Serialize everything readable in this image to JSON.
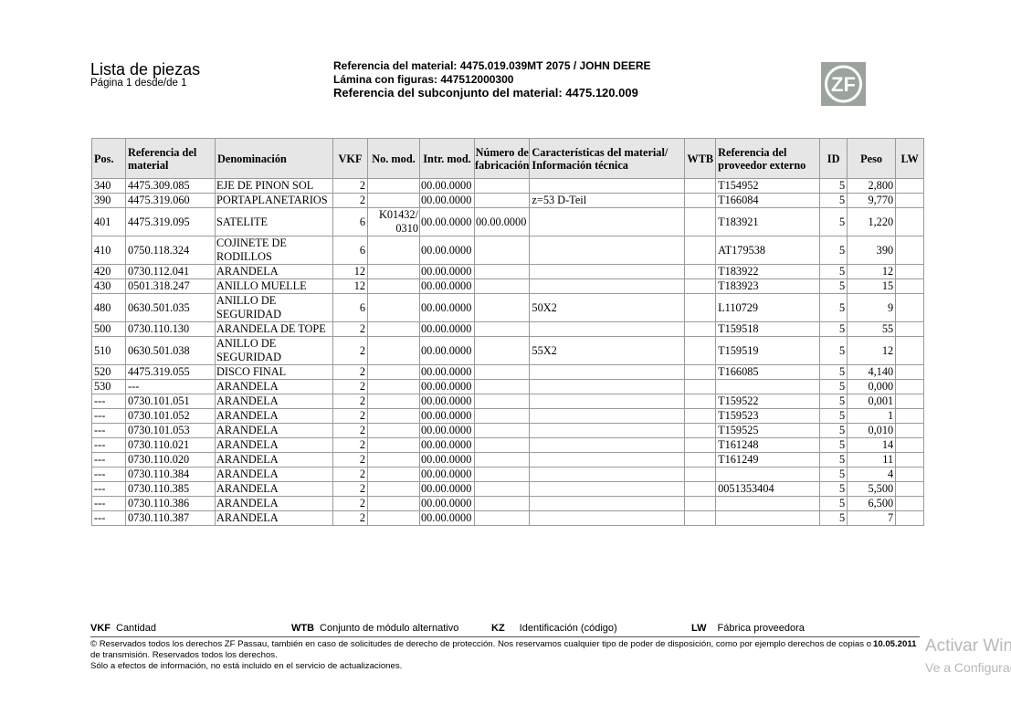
{
  "header": {
    "title": "Lista de piezas",
    "page": "Página 1 desde/de 1",
    "material_ref": "Referencia del material: 4475.019.039MT 2075 / JOHN DEERE",
    "lamina": "Lámina con figuras: 447512000300",
    "subassembly_ref": "Referencia del subconjunto del material: 4475.120.009",
    "logo_text": "ZF"
  },
  "table": {
    "columns": [
      "Pos.",
      "Referencia del material",
      "Denominación",
      "VKF",
      "No. mod.",
      "Intr. mod.",
      "Número de fabricación",
      "Características del material/ Información técnica",
      "WTB",
      "Referencia del proveedor externo",
      "ID",
      "Peso",
      "LW"
    ],
    "rows": [
      [
        "340",
        "4475.309.085",
        "EJE DE PINON SOL",
        "2",
        "",
        "00.00.0000",
        "",
        "",
        "",
        "T154952",
        "5",
        "2,800",
        ""
      ],
      [
        "390",
        "4475.319.060",
        "PORTAPLANETARIOS",
        "2",
        "",
        "00.00.0000",
        "",
        "z=53 D-Teil",
        "",
        "T166084",
        "5",
        "9,770",
        ""
      ],
      [
        "401",
        "4475.319.095",
        "SATELITE",
        "6",
        "K01432/ 0310",
        "00.00.0000",
        "00.00.0000",
        "",
        "",
        "T183921",
        "5",
        "1,220",
        ""
      ],
      [
        "410",
        "0750.118.324",
        "COJINETE DE RODILLOS",
        "6",
        "",
        "00.00.0000",
        "",
        "",
        "",
        "AT179538",
        "5",
        "390",
        ""
      ],
      [
        "420",
        "0730.112.041",
        "ARANDELA",
        "12",
        "",
        "00.00.0000",
        "",
        "",
        "",
        "T183922",
        "5",
        "12",
        ""
      ],
      [
        "430",
        "0501.318.247",
        "ANILLO MUELLE",
        "12",
        "",
        "00.00.0000",
        "",
        "",
        "",
        "T183923",
        "5",
        "15",
        ""
      ],
      [
        "480",
        "0630.501.035",
        "ANILLO DE SEGURIDAD",
        "6",
        "",
        "00.00.0000",
        "",
        "50X2",
        "",
        "L110729",
        "5",
        "9",
        ""
      ],
      [
        "500",
        "0730.110.130",
        "ARANDELA DE TOPE",
        "2",
        "",
        "00.00.0000",
        "",
        "",
        "",
        "T159518",
        "5",
        "55",
        ""
      ],
      [
        "510",
        "0630.501.038",
        "ANILLO DE SEGURIDAD",
        "2",
        "",
        "00.00.0000",
        "",
        "55X2",
        "",
        "T159519",
        "5",
        "12",
        ""
      ],
      [
        "520",
        "4475.319.055",
        "DISCO FINAL",
        "2",
        "",
        "00.00.0000",
        "",
        "",
        "",
        "T166085",
        "5",
        "4,140",
        ""
      ],
      [
        "530",
        "---",
        "ARANDELA",
        "2",
        "",
        "00.00.0000",
        "",
        "",
        "",
        "",
        "5",
        "0,000",
        ""
      ],
      [
        "---",
        "0730.101.051",
        "ARANDELA",
        "2",
        "",
        "00.00.0000",
        "",
        "",
        "",
        "T159522",
        "5",
        "0,001",
        ""
      ],
      [
        "---",
        "0730.101.052",
        "ARANDELA",
        "2",
        "",
        "00.00.0000",
        "",
        "",
        "",
        "T159523",
        "5",
        "1",
        ""
      ],
      [
        "---",
        "0730.101.053",
        "ARANDELA",
        "2",
        "",
        "00.00.0000",
        "",
        "",
        "",
        "T159525",
        "5",
        "0,010",
        ""
      ],
      [
        "---",
        "0730.110.021",
        "ARANDELA",
        "2",
        "",
        "00.00.0000",
        "",
        "",
        "",
        "T161248",
        "5",
        "14",
        ""
      ],
      [
        "---",
        "0730.110.020",
        "ARANDELA",
        "2",
        "",
        "00.00.0000",
        "",
        "",
        "",
        "T161249",
        "5",
        "11",
        ""
      ],
      [
        "---",
        "0730.110.384",
        "ARANDELA",
        "2",
        "",
        "00.00.0000",
        "",
        "",
        "",
        "",
        "5",
        "4",
        ""
      ],
      [
        "---",
        "0730.110.385",
        "ARANDELA",
        "2",
        "",
        "00.00.0000",
        "",
        "",
        "",
        "0051353404",
        "5",
        "5,500",
        ""
      ],
      [
        "---",
        "0730.110.386",
        "ARANDELA",
        "2",
        "",
        "00.00.0000",
        "",
        "",
        "",
        "",
        "5",
        "6,500",
        ""
      ],
      [
        "---",
        "0730.110.387",
        "ARANDELA",
        "2",
        "",
        "00.00.0000",
        "",
        "",
        "",
        "",
        "5",
        "7",
        ""
      ]
    ]
  },
  "legend": [
    {
      "key": "VKF",
      "text": "Cantidad"
    },
    {
      "key": "WTB",
      "text": "Conjunto de módulo alternativo"
    },
    {
      "key": "KZ",
      "text": "Identificación (código)"
    },
    {
      "key": "LW",
      "text": "Fábrica proveedora"
    }
  ],
  "footer": {
    "line1": "© Reservados todos los derechos ZF Passau, también en caso de solicitudes de derecho de protección. Nos reservamos cualquier tipo de poder de disposición, como por ejemplo derechos de copias o de transmisión. Reservados todos los derechos.",
    "line2": "Sólo a efectos de información, no está incluido en el servicio de actualizaciones.",
    "date": "10.05.2011"
  },
  "watermark": {
    "line1": "Activar Windows",
    "line2": "Ve a Configuración"
  }
}
